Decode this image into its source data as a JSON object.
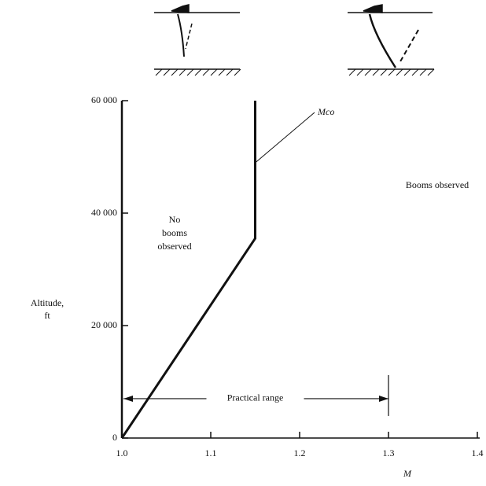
{
  "chart_data": {
    "type": "line",
    "xlabel": "M",
    "ylabel": [
      "Altitude,",
      "ft"
    ],
    "xlim": [
      1.0,
      1.4
    ],
    "xticks": [
      {
        "value": 1.0,
        "label": "1.0"
      },
      1.1,
      1.2,
      1.3,
      1.4
    ],
    "ylim": [
      0,
      60000
    ],
    "yticks": [
      0,
      {
        "value": 20000,
        "label": "20 000"
      },
      {
        "value": 40000,
        "label": "40 000"
      },
      {
        "value": 60000,
        "label": "60 000"
      }
    ],
    "series": [
      {
        "name": "Mco",
        "color": "#111111",
        "x": [
          1.0,
          1.15,
          1.15
        ],
        "values": [
          0,
          35500,
          60000
        ]
      }
    ],
    "annotations": {
      "no_booms": [
        "No",
        "booms",
        "observed"
      ],
      "booms": "Booms observed",
      "practical_range": {
        "text": "Practical range",
        "range": [
          1.0,
          1.3
        ],
        "altitude": 7000
      }
    }
  }
}
